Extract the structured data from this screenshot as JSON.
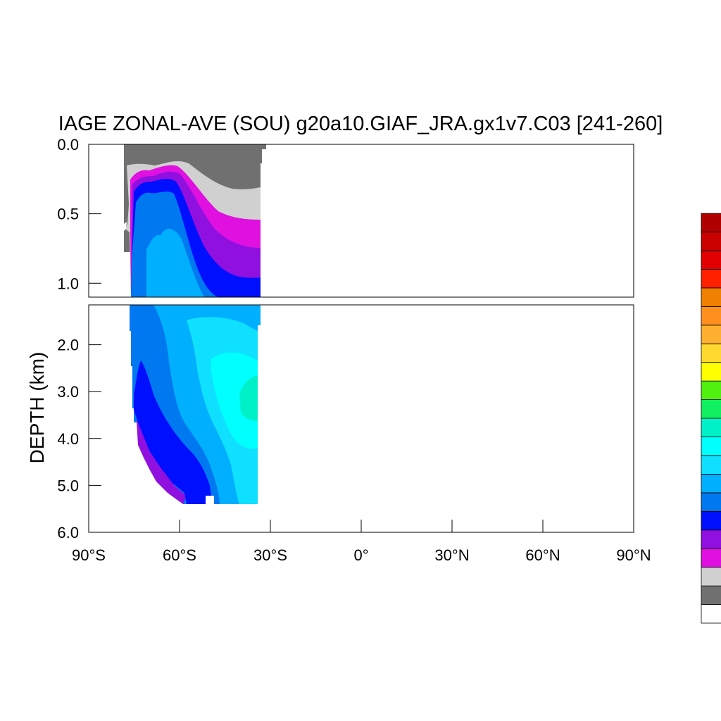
{
  "chart_data": {
    "type": "heatmap",
    "title": "IAGE ZONAL-AVE (SOU) g20a10.GIAF_JRA.gx1v7.C03 [241-260]",
    "ylabel": "DEPTH (km)",
    "xlabel": "",
    "x_ticks": [
      {
        "value": -90,
        "label": "90°S"
      },
      {
        "value": -60,
        "label": "60°S"
      },
      {
        "value": -30,
        "label": "30°S"
      },
      {
        "value": 0,
        "label": "0°"
      },
      {
        "value": 30,
        "label": "30°N"
      },
      {
        "value": 60,
        "label": "60°N"
      },
      {
        "value": 90,
        "label": "90°N"
      }
    ],
    "xlim": [
      -90,
      90
    ],
    "upper_panel": {
      "ylim": [
        0,
        1.1
      ],
      "y_ticks": [
        {
          "value": 0.0,
          "label": "0.0"
        },
        {
          "value": 0.5,
          "label": "0.5"
        },
        {
          "value": 1.0,
          "label": "1.0"
        }
      ]
    },
    "lower_panel": {
      "ylim": [
        1.15,
        6.0
      ],
      "y_ticks": [
        {
          "value": 2.0,
          "label": "2.0"
        },
        {
          "value": 3.0,
          "label": "3.0"
        },
        {
          "value": 4.0,
          "label": "4.0"
        },
        {
          "value": 5.0,
          "label": "5.0"
        },
        {
          "value": 6.0,
          "label": "6.0"
        }
      ]
    },
    "colorbar_colors": [
      "#ffffff",
      "#707070",
      "#d0d0d0",
      "#e010e0",
      "#9010e0",
      "#0010ff",
      "#0078f0",
      "#00b0ff",
      "#10e0ff",
      "#00ffff",
      "#00f0c8",
      "#10f060",
      "#50f010",
      "#ffff00",
      "#ffd830",
      "#ffb030",
      "#ff9020",
      "#f08000",
      "#ff2000",
      "#e00000",
      "#c80000",
      "#b00000"
    ],
    "colors": {
      "level_0": "#707070",
      "level_1": "#d0d0d0",
      "level_2": "#e010e0",
      "level_3": "#9010e0",
      "level_4": "#0010ff",
      "level_5": "#0078f0",
      "level_6": "#00b0ff",
      "level_7": "#10e0ff",
      "level_8": "#00ffff",
      "level_9": "#00f0c8"
    }
  }
}
